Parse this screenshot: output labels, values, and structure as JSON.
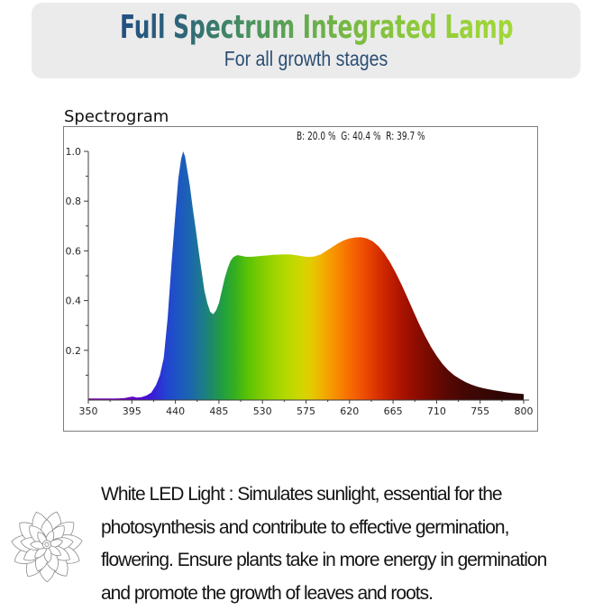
{
  "banner": {
    "title": "Full Spectrum Integrated Lamp",
    "subtitle": "For all growth stages",
    "bg_color": "#ebebeb",
    "title_gradient": [
      "#234f82",
      "#478e62",
      "#7cbc42",
      "#a2d838"
    ],
    "subtitle_color": "#2b4d74"
  },
  "section_title": "Spectrogram",
  "chart_data": {
    "type": "area",
    "title": "Spectrogram",
    "legend": "B: 20.0 %  G: 40.4 %  R: 39.7 %",
    "legend_items": [
      {
        "label": "B",
        "value_pct": 20.0
      },
      {
        "label": "G",
        "value_pct": 40.4
      },
      {
        "label": "R",
        "value_pct": 39.7
      }
    ],
    "legend_position": "top-center",
    "grid": false,
    "xlim": [
      350,
      800
    ],
    "ylim": [
      0,
      1.0
    ],
    "x_major_ticks": [
      350,
      395,
      440,
      485,
      530,
      575,
      620,
      665,
      710,
      755,
      800
    ],
    "y_major_ticks": [
      0.2,
      0.4,
      0.6,
      0.8,
      1.0
    ],
    "points": [
      [
        350,
        0.006
      ],
      [
        358,
        0.006
      ],
      [
        366,
        0.006
      ],
      [
        374,
        0.006
      ],
      [
        382,
        0.007
      ],
      [
        388,
        0.008
      ],
      [
        392,
        0.012
      ],
      [
        396,
        0.014
      ],
      [
        400,
        0.01
      ],
      [
        405,
        0.012
      ],
      [
        410,
        0.018
      ],
      [
        415,
        0.03
      ],
      [
        420,
        0.06
      ],
      [
        424,
        0.1
      ],
      [
        428,
        0.17
      ],
      [
        432,
        0.33
      ],
      [
        436,
        0.55
      ],
      [
        440,
        0.75
      ],
      [
        443,
        0.89
      ],
      [
        446,
        0.97
      ],
      [
        448,
        1.0
      ],
      [
        450,
        0.98
      ],
      [
        452,
        0.93
      ],
      [
        455,
        0.86
      ],
      [
        458,
        0.77
      ],
      [
        461,
        0.69
      ],
      [
        464,
        0.6
      ],
      [
        467,
        0.52
      ],
      [
        470,
        0.44
      ],
      [
        473,
        0.39
      ],
      [
        476,
        0.355
      ],
      [
        479,
        0.345
      ],
      [
        482,
        0.36
      ],
      [
        485,
        0.39
      ],
      [
        488,
        0.44
      ],
      [
        491,
        0.49
      ],
      [
        494,
        0.53
      ],
      [
        497,
        0.56
      ],
      [
        500,
        0.575
      ],
      [
        504,
        0.583
      ],
      [
        508,
        0.58
      ],
      [
        513,
        0.576
      ],
      [
        518,
        0.576
      ],
      [
        524,
        0.578
      ],
      [
        530,
        0.58
      ],
      [
        536,
        0.582
      ],
      [
        542,
        0.584
      ],
      [
        548,
        0.585
      ],
      [
        554,
        0.586
      ],
      [
        560,
        0.585
      ],
      [
        566,
        0.582
      ],
      [
        572,
        0.578
      ],
      [
        578,
        0.575
      ],
      [
        584,
        0.578
      ],
      [
        590,
        0.585
      ],
      [
        596,
        0.6
      ],
      [
        602,
        0.615
      ],
      [
        608,
        0.63
      ],
      [
        614,
        0.642
      ],
      [
        620,
        0.65
      ],
      [
        626,
        0.654
      ],
      [
        632,
        0.655
      ],
      [
        638,
        0.65
      ],
      [
        644,
        0.638
      ],
      [
        650,
        0.618
      ],
      [
        656,
        0.59
      ],
      [
        662,
        0.553
      ],
      [
        668,
        0.51
      ],
      [
        674,
        0.462
      ],
      [
        680,
        0.41
      ],
      [
        686,
        0.358
      ],
      [
        692,
        0.305
      ],
      [
        698,
        0.258
      ],
      [
        704,
        0.215
      ],
      [
        710,
        0.178
      ],
      [
        716,
        0.146
      ],
      [
        722,
        0.12
      ],
      [
        728,
        0.1
      ],
      [
        734,
        0.085
      ],
      [
        740,
        0.072
      ],
      [
        746,
        0.062
      ],
      [
        752,
        0.054
      ],
      [
        758,
        0.048
      ],
      [
        764,
        0.043
      ],
      [
        770,
        0.039
      ],
      [
        776,
        0.035
      ],
      [
        782,
        0.031
      ],
      [
        788,
        0.028
      ],
      [
        794,
        0.026
      ],
      [
        800,
        0.024
      ]
    ],
    "gradient_stops": [
      [
        350,
        "#7c00a5"
      ],
      [
        380,
        "#7400b8"
      ],
      [
        400,
        "#5d00cd"
      ],
      [
        415,
        "#3b18d8"
      ],
      [
        430,
        "#2442d2"
      ],
      [
        443,
        "#1d56c4"
      ],
      [
        455,
        "#1c66ae"
      ],
      [
        467,
        "#1c7a8e"
      ],
      [
        478,
        "#1e8a64"
      ],
      [
        490,
        "#22a03e"
      ],
      [
        502,
        "#37b01e"
      ],
      [
        514,
        "#58c206"
      ],
      [
        528,
        "#7ecb00"
      ],
      [
        542,
        "#9cd400"
      ],
      [
        556,
        "#b7d800"
      ],
      [
        568,
        "#ccd800"
      ],
      [
        580,
        "#e2cc00"
      ],
      [
        590,
        "#f0b400"
      ],
      [
        600,
        "#f69c00"
      ],
      [
        610,
        "#f78500"
      ],
      [
        620,
        "#f66c00"
      ],
      [
        630,
        "#f25702"
      ],
      [
        640,
        "#e74300"
      ],
      [
        650,
        "#d73000"
      ],
      [
        660,
        "#c52100"
      ],
      [
        672,
        "#ad1500"
      ],
      [
        684,
        "#970e00"
      ],
      [
        696,
        "#820b00"
      ],
      [
        708,
        "#6d0900"
      ],
      [
        722,
        "#560803"
      ],
      [
        738,
        "#450704"
      ],
      [
        755,
        "#3a0704"
      ],
      [
        775,
        "#300605"
      ],
      [
        800,
        "#2a0605"
      ]
    ]
  },
  "footer": {
    "icon": "succulent-flower-icon",
    "lines": [
      "White LED Light :  Simulates sunlight, essential for the",
      "photosynthesis and contribute to effective germination,",
      "flowering. Ensure plants take in more energy in germination",
      "and promote the growth of leaves and roots."
    ]
  }
}
